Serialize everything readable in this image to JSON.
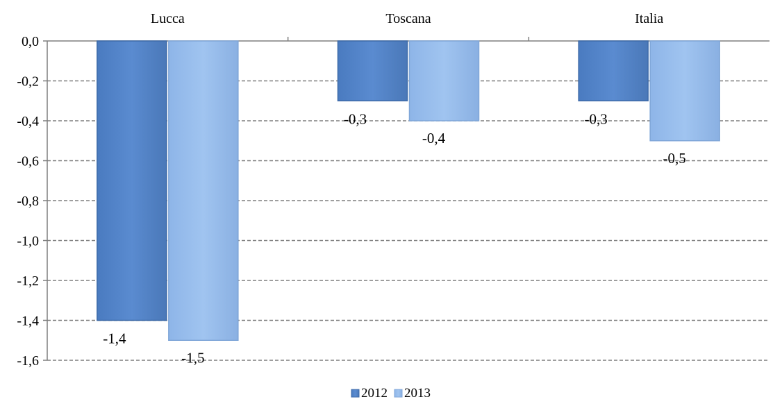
{
  "chart_data": {
    "type": "bar",
    "categories": [
      "Lucca",
      "Toscana",
      "Italia"
    ],
    "series": [
      {
        "name": "2012",
        "values": [
          -1.4,
          -0.3,
          -0.3
        ],
        "color": "#5585C8"
      },
      {
        "name": "2013",
        "values": [
          -1.5,
          -0.4,
          -0.5
        ],
        "color": "#97BCEC"
      }
    ],
    "data_labels": [
      [
        "-1,4",
        "-0,3",
        "-0,3"
      ],
      [
        "-1,5",
        "-0,4",
        "-0,5"
      ]
    ],
    "y_tick_labels": [
      "0,0",
      "-0,2",
      "-0,4",
      "-0,6",
      "-0,8",
      "-1,0",
      "-1,2",
      "-1,4",
      "-1,6"
    ],
    "ylim": [
      -1.6,
      0
    ],
    "y_tick_step": 0.2,
    "category_axis_position": "top",
    "grid": "horizontal-dashed",
    "legend_position": "bottom-center",
    "title": "",
    "xlabel": "",
    "ylabel": ""
  }
}
